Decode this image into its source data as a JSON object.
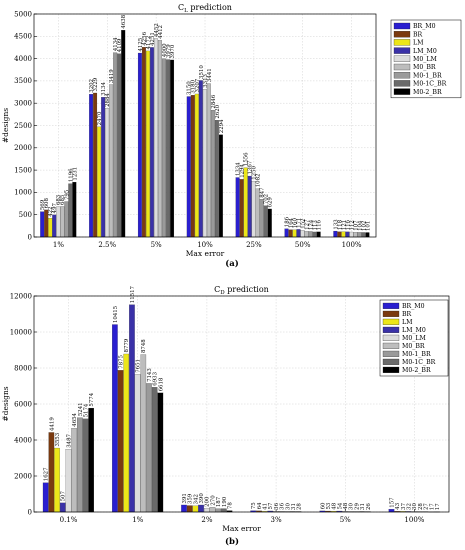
{
  "panel_labels": [
    "(a)",
    "(b)"
  ],
  "chart_data": [
    {
      "type": "bar",
      "title": "CL prediction",
      "title_main": "C",
      "title_sub": "L",
      "title_rest": " prediction",
      "xlabel": "Max error",
      "ylabel": "#designs",
      "ylim": [
        0,
        5000
      ],
      "yticks": [
        0,
        500,
        1000,
        1500,
        2000,
        2500,
        3000,
        3500,
        4000,
        4500,
        5000
      ],
      "grid": true,
      "legend_position": "top-right",
      "categories": [
        "1%",
        "2.5%",
        "5%",
        "10%",
        "25%",
        "50%",
        "100%"
      ],
      "series": [
        {
          "name": "BR_M0",
          "color": "#2a1fd0",
          "values": [
            569,
            3202,
            4125,
            3150,
            1334,
            186,
            133
          ]
        },
        {
          "name": "BR",
          "color": "#7a3a10",
          "values": [
            608,
            3229,
            4256,
            3180,
            1294,
            164,
            118
          ]
        },
        {
          "name": "LM",
          "color": "#ece619",
          "values": [
            422,
            2470,
            4172,
            3207,
            1556,
            160,
            121
          ]
        },
        {
          "name": "LM_M0",
          "color": "#3a31a8",
          "values": [
            497,
            3134,
            4251,
            3510,
            1367,
            171,
            116
          ]
        },
        {
          "name": "M0_LM",
          "color": "#dcdcdc",
          "values": [
            683,
            2884,
            4452,
            3313,
            1250,
            152,
            112
          ]
        },
        {
          "name": "M0_BR",
          "color": "#bdbdbd",
          "values": [
            685,
            3419,
            4412,
            3441,
            1082,
            127,
            107
          ]
        },
        {
          "name": "M0-1_BR",
          "color": "#9a9a9a",
          "values": [
            795,
            4134,
            4000,
            2846,
            847,
            124,
            104
          ]
        },
        {
          "name": "M0-1C_BR",
          "color": "#6a6a6a",
          "values": [
            1196,
            4109,
            3979,
            2620,
            702,
            113,
            102
          ]
        },
        {
          "name": "M0-2_BR",
          "color": "#000000",
          "values": [
            1231,
            4638,
            3970,
            2294,
            629,
            116,
            101
          ]
        }
      ]
    },
    {
      "type": "bar",
      "title": "CD prediction",
      "title_main": "C",
      "title_sub": "D",
      "title_rest": " prediction",
      "xlabel": "Max error",
      "ylabel": "#designs",
      "ylim": [
        0,
        12000
      ],
      "yticks": [
        0,
        2000,
        4000,
        6000,
        8000,
        10000,
        12000
      ],
      "grid": true,
      "legend_position": "top-right",
      "categories": [
        "0.1%",
        "1%",
        "2%",
        "3%",
        "5%",
        "100%"
      ],
      "series": [
        {
          "name": "BR_M0",
          "color": "#2a1fd0",
          "values": [
            1627,
            10415,
            391,
            75,
            60,
            157
          ]
        },
        {
          "name": "BR",
          "color": "#7a3a10",
          "values": [
            4419,
            7875,
            359,
            64,
            53,
            43
          ]
        },
        {
          "name": "LM",
          "color": "#ece619",
          "values": [
            3553,
            8779,
            342,
            41,
            48,
            37
          ]
        },
        {
          "name": "LM_M0",
          "color": "#3a31a8",
          "values": [
            507,
            11517,
            390,
            57,
            54,
            32
          ]
        },
        {
          "name": "M0_LM",
          "color": "#dcdcdc",
          "values": [
            3487,
            7651,
            200,
            36,
            48,
            30
          ]
        },
        {
          "name": "M0_BR",
          "color": "#bdbdbd",
          "values": [
            4654,
            8748,
            270,
            36,
            30,
            28
          ]
        },
        {
          "name": "M0-1_BR",
          "color": "#9a9a9a",
          "values": [
            5241,
            7143,
            187,
            30,
            29,
            27
          ]
        },
        {
          "name": "M0-1C_BR",
          "color": "#6a6a6a",
          "values": [
            5174,
            6933,
            190,
            31,
            31,
            17
          ]
        },
        {
          "name": "M0-2_BR",
          "color": "#000000",
          "values": [
            5774,
            6618,
            78,
            28,
            26,
            17
          ]
        }
      ]
    }
  ]
}
